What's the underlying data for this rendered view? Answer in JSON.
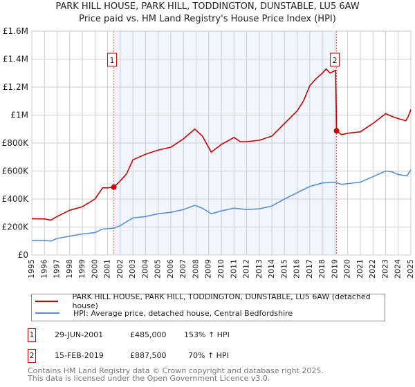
{
  "title": "PARK HILL HOUSE, PARK HILL, TODDINGTON, DUNSTABLE, LU5 6AW",
  "subtitle": "Price paid vs. HM Land Registry's House Price Index (HPI)",
  "chart_data": {
    "type": "line",
    "xlim": [
      1995,
      2025
    ],
    "ylim": [
      0,
      1600000
    ],
    "x_ticks": [
      "1995",
      "1996",
      "1997",
      "1998",
      "1999",
      "2000",
      "2001",
      "2002",
      "2003",
      "2004",
      "2005",
      "2006",
      "2007",
      "2008",
      "2009",
      "2010",
      "2011",
      "2012",
      "2013",
      "2014",
      "2015",
      "2016",
      "2017",
      "2018",
      "2019",
      "2020",
      "2021",
      "2022",
      "2023",
      "2024",
      "2025"
    ],
    "y_ticks": [
      {
        "v": 0,
        "label": "£0"
      },
      {
        "v": 200000,
        "label": "£200K"
      },
      {
        "v": 400000,
        "label": "£400K"
      },
      {
        "v": 600000,
        "label": "£600K"
      },
      {
        "v": 800000,
        "label": "£800K"
      },
      {
        "v": 1000000,
        "label": "£1M"
      },
      {
        "v": 1200000,
        "label": "£1.2M"
      },
      {
        "v": 1400000,
        "label": "£1.4M"
      },
      {
        "v": 1600000,
        "label": "£1.6M"
      }
    ],
    "grid": true,
    "shaded_range": [
      2001.49,
      2019.12
    ],
    "series": [
      {
        "name": "PARK HILL HOUSE, PARK HILL, TODDINGTON, DUNSTABLE, LU5 6AW (detached house)",
        "color": "#cc0000",
        "x": [
          1995,
          1996,
          1996.5,
          1997,
          1998,
          1999,
          2000,
          2000.6,
          2001,
          2001.49,
          2002,
          2002.5,
          2003,
          2004,
          2005,
          2006,
          2007,
          2007.9,
          2008.5,
          2009.2,
          2010,
          2011,
          2011.5,
          2012,
          2013,
          2014,
          2015,
          2016,
          2016.5,
          2017,
          2017.5,
          2018,
          2018.3,
          2018.6,
          2019.05,
          2019.12,
          2019.5,
          2020,
          2021,
          2022,
          2022.5,
          2023,
          2023.5,
          2024,
          2024.6,
          2024.8,
          2025
        ],
        "y": [
          260000,
          258000,
          250000,
          275000,
          320000,
          345000,
          400000,
          480000,
          480000,
          485000,
          530000,
          580000,
          680000,
          720000,
          750000,
          770000,
          830000,
          900000,
          850000,
          735000,
          790000,
          840000,
          810000,
          810000,
          820000,
          850000,
          940000,
          1030000,
          1100000,
          1210000,
          1260000,
          1300000,
          1330000,
          1300000,
          1320000,
          887500,
          860000,
          870000,
          880000,
          940000,
          975000,
          1010000,
          990000,
          975000,
          960000,
          990000,
          1040000
        ]
      },
      {
        "name": "HPI: Average price, detached house, Central Bedfordshire",
        "color": "#5b8fd6",
        "x": [
          1995,
          1996,
          1996.5,
          1997,
          1998,
          1999,
          2000,
          2000.6,
          2001.49,
          2002,
          2003,
          2004,
          2005,
          2006,
          2007,
          2007.9,
          2008.5,
          2009.2,
          2010,
          2011,
          2012,
          2013,
          2014,
          2015,
          2016,
          2017,
          2018,
          2019,
          2019.5,
          2020,
          2021,
          2022,
          2023,
          2023.5,
          2024,
          2024.7,
          2025
        ],
        "y": [
          103000,
          105000,
          100000,
          118000,
          135000,
          150000,
          160000,
          185000,
          192000,
          210000,
          265000,
          275000,
          295000,
          305000,
          325000,
          355000,
          335000,
          295000,
          315000,
          335000,
          325000,
          330000,
          350000,
          400000,
          445000,
          490000,
          515000,
          520000,
          505000,
          510000,
          520000,
          560000,
          600000,
          595000,
          575000,
          565000,
          610000
        ]
      }
    ],
    "annotations": [
      {
        "label": "1",
        "x": 2001.49,
        "y": 485000
      },
      {
        "label": "2",
        "x": 2019.12,
        "y": 887500
      }
    ]
  },
  "legend": {
    "red": "PARK HILL HOUSE, PARK HILL, TODDINGTON, DUNSTABLE, LU5 6AW (detached house)",
    "blue": "HPI: Average price, detached house, Central Bedfordshire"
  },
  "transactions": [
    {
      "num": "1",
      "date": "29-JUN-2001",
      "price": "£485,000",
      "hpi": "153% ↑ HPI"
    },
    {
      "num": "2",
      "date": "15-FEB-2019",
      "price": "£887,500",
      "hpi": "70% ↑ HPI"
    }
  ],
  "footer": {
    "line1": "Contains HM Land Registry data © Crown copyright and database right 2025.",
    "line2": "This data is licensed under the Open Government Licence v3.0."
  }
}
